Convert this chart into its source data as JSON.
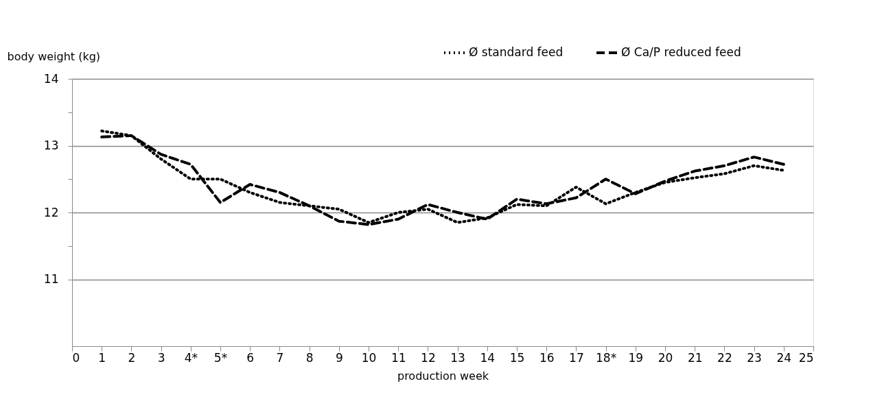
{
  "chart_data": {
    "type": "line",
    "xlabel": "production week",
    "ylabel": "body weight (kg)",
    "x": [
      1,
      2,
      3,
      4,
      5,
      6,
      7,
      8,
      9,
      10,
      11,
      12,
      13,
      14,
      15,
      16,
      17,
      18,
      19,
      20,
      21,
      22,
      23,
      24
    ],
    "series": [
      {
        "name": "Ø standard feed",
        "color": "#000000",
        "line_style": "dotted",
        "values": [
          13.22,
          13.15,
          12.8,
          12.5,
          12.5,
          12.3,
          12.15,
          12.1,
          12.05,
          11.85,
          12.0,
          12.05,
          11.85,
          11.92,
          12.12,
          12.1,
          12.38,
          12.13,
          12.3,
          12.45,
          12.52,
          12.58,
          12.7,
          12.63
        ]
      },
      {
        "name": "Ø Ca/P reduced feed",
        "color": "#000000",
        "line_style": "dashed",
        "values": [
          13.13,
          13.15,
          12.87,
          12.72,
          12.15,
          12.42,
          12.3,
          12.1,
          11.87,
          11.82,
          11.9,
          12.12,
          12.0,
          11.9,
          12.2,
          12.13,
          12.22,
          12.5,
          12.28,
          12.47,
          12.62,
          12.7,
          12.83,
          12.72
        ]
      }
    ],
    "xlim": [
      0,
      25
    ],
    "xticks": [
      0,
      1,
      2,
      3,
      {
        "value": 4,
        "label": "4*"
      },
      {
        "value": 5,
        "label": "5*"
      },
      6,
      7,
      8,
      9,
      10,
      11,
      12,
      13,
      14,
      15,
      16,
      17,
      {
        "value": 18,
        "label": "18*"
      },
      19,
      20,
      21,
      22,
      23,
      24,
      25
    ],
    "ylim": [
      10,
      14
    ],
    "yticks": [
      {
        "value": 11.5,
        "label": null
      },
      {
        "value": 12.5,
        "label": null
      },
      {
        "value": 13.5,
        "label": null
      },
      11,
      12,
      13,
      14
    ],
    "grid": "y",
    "legend": "top right",
    "marker": "none"
  }
}
